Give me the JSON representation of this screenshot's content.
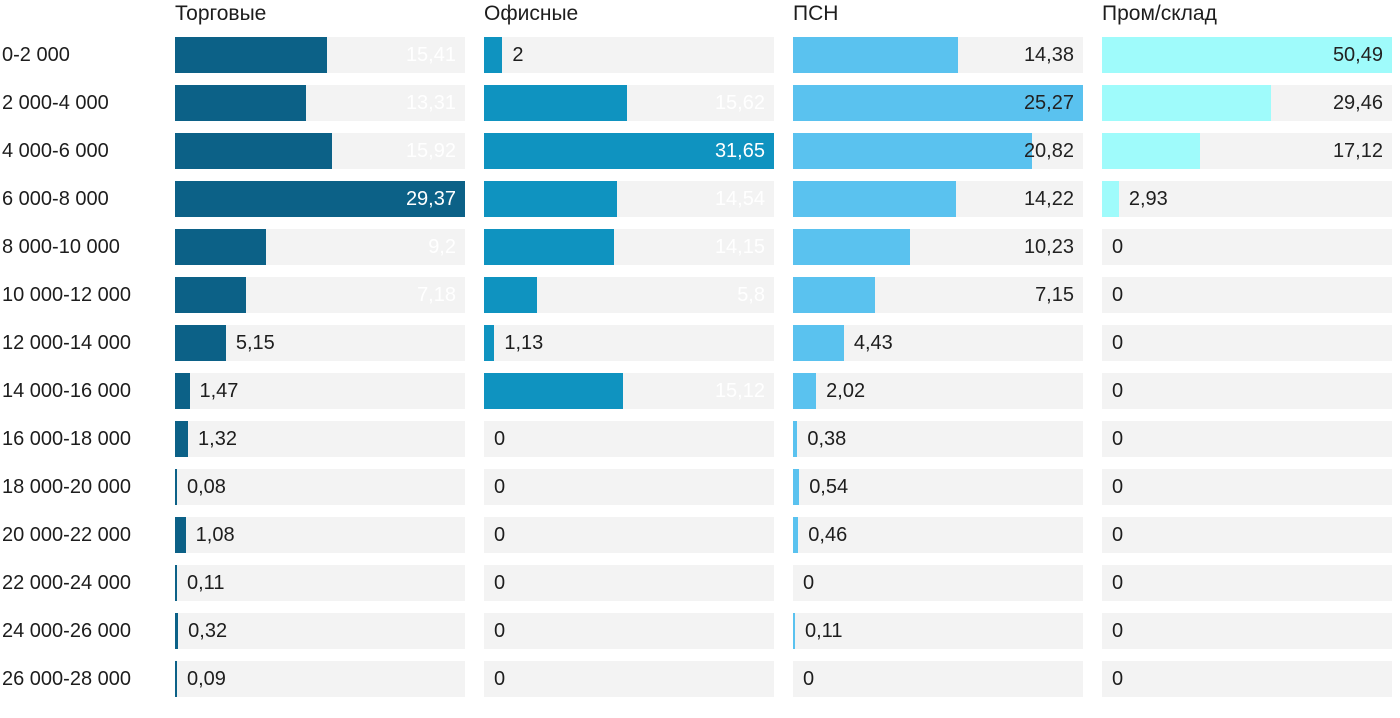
{
  "chart_data": {
    "type": "bar",
    "orientation": "horizontal",
    "title": "",
    "grid": false,
    "legend_position": "column-headers",
    "scaling": "each series scaled independently to its own maximum (max value fills full track width)",
    "track_color": "#f3f3f3",
    "text_color": "#1d1d1d",
    "categories": [
      "0-2 000",
      "2 000-4 000",
      "4 000-6 000",
      "6 000-8 000",
      "8 000-10 000",
      "10 000-12 000",
      "12 000-14 000",
      "14 000-16 000",
      "16 000-18 000",
      "18 000-20 000",
      "20 000-22 000",
      "22 000-24 000",
      "24 000-26 000",
      "26 000-28 000"
    ],
    "series": [
      {
        "name": "Торговые",
        "color": "#0c6187",
        "label_inside_color": "#ffffff",
        "values": [
          15.41,
          13.31,
          15.92,
          29.37,
          9.2,
          7.18,
          5.15,
          1.47,
          1.32,
          0.08,
          1.08,
          0.11,
          0.32,
          0.09
        ],
        "labels": [
          "15,41",
          "13,31",
          "15,92",
          "29,37",
          "9,2",
          "7,18",
          "5,15",
          "1,47",
          "1,32",
          "0,08",
          "1,08",
          "0,11",
          "0,32",
          "0,09"
        ]
      },
      {
        "name": "Офисные",
        "color": "#0f93c0",
        "label_inside_color": "#ffffff",
        "values": [
          2,
          15.62,
          31.65,
          14.54,
          14.15,
          5.8,
          1.13,
          15.12,
          0,
          0,
          0,
          0,
          0,
          0
        ],
        "labels": [
          "2",
          "15,62",
          "31,65",
          "14,54",
          "14,15",
          "5,8",
          "1,13",
          "15,12",
          "0",
          "0",
          "0",
          "0",
          "0",
          "0"
        ]
      },
      {
        "name": "ПСН",
        "color": "#5ac2ef",
        "label_inside_color": "#222222",
        "values": [
          14.38,
          25.27,
          20.82,
          14.22,
          10.23,
          7.15,
          4.43,
          2.02,
          0.38,
          0.54,
          0.46,
          0,
          0.11,
          0
        ],
        "labels": [
          "14,38",
          "25,27",
          "20,82",
          "14,22",
          "10,23",
          "7,15",
          "4,43",
          "2,02",
          "0,38",
          "0,54",
          "0,46",
          "0",
          "0,11",
          "0"
        ]
      },
      {
        "name": "Пром/склад",
        "color": "#9ffbfb",
        "label_inside_color": "#222222",
        "values": [
          50.49,
          29.46,
          17.12,
          2.93,
          0,
          0,
          0,
          0,
          0,
          0,
          0,
          0,
          0,
          0
        ],
        "labels": [
          "50,49",
          "29,46",
          "17,12",
          "2,93",
          "0",
          "0",
          "0",
          "0",
          "0",
          "0",
          "0",
          "0",
          "0",
          "0"
        ]
      }
    ]
  }
}
